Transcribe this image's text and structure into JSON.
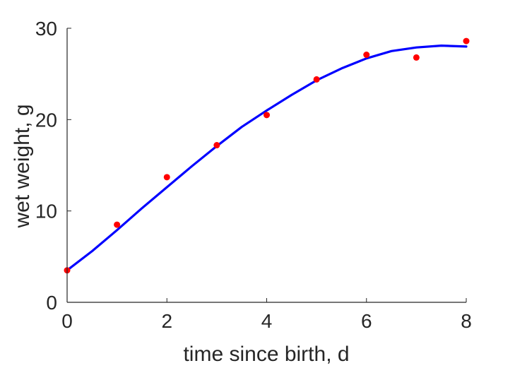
{
  "chart_data": {
    "type": "scatter",
    "title": "",
    "xlabel": "time since birth, d",
    "ylabel": "wet weight, g",
    "xlim": [
      0,
      8
    ],
    "ylim": [
      0,
      30
    ],
    "xticks": [
      0,
      2,
      4,
      6,
      8
    ],
    "yticks": [
      0,
      10,
      20,
      30
    ],
    "xtick_labels": [
      "0",
      "2",
      "4",
      "6",
      "8"
    ],
    "ytick_labels": [
      "0",
      "10",
      "20",
      "30"
    ],
    "grid": false,
    "legend": "none",
    "colors": {
      "data": "#ff0000",
      "fit": "#0000ff",
      "axes": "#262626"
    },
    "series": [
      {
        "kind": "points",
        "x": [
          0,
          1,
          2,
          3,
          4,
          5,
          6,
          7,
          8
        ],
        "y": [
          3.5,
          8.5,
          13.7,
          17.2,
          20.5,
          24.4,
          27.1,
          26.8,
          28.6
        ]
      },
      {
        "kind": "line",
        "x": [
          0,
          0.5,
          1,
          1.5,
          2,
          2.5,
          3,
          3.5,
          4,
          4.5,
          5,
          5.5,
          6,
          6.5,
          7,
          7.5,
          8
        ],
        "y": [
          3.5,
          5.6,
          7.9,
          10.3,
          12.6,
          14.9,
          17.1,
          19.2,
          21.0,
          22.7,
          24.3,
          25.6,
          26.7,
          27.5,
          27.9,
          28.1,
          28.0
        ]
      }
    ]
  }
}
